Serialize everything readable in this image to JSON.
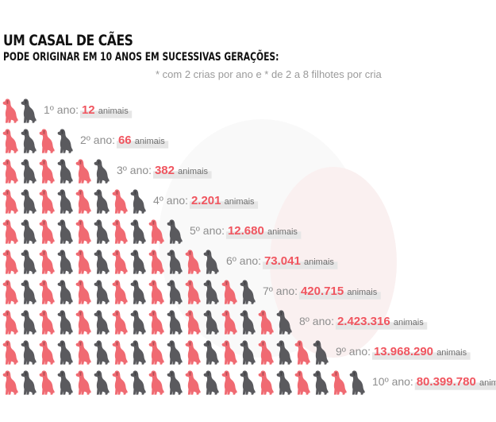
{
  "title": "UM CASAL DE CÃES",
  "subtitle": "PODE ORIGINAR EM 10 ANOS EM SUCESSIVAS GERAÇÕES:",
  "note": "* com 2 crias por ano e  * de 2 a 8 filhotes por cria",
  "colors": {
    "dog_pink": "#f06a72",
    "dog_gray": "#5a5a5e",
    "year_text": "#8e8e8e",
    "value_text": "#f0555f",
    "unit_text": "#6e6e6e",
    "label_shadow": "#e6e6e6"
  },
  "icons": [
    "dog-icon"
  ],
  "chart_data": {
    "type": "pictogram",
    "title": "UM CASAL DE CÃES",
    "subtitle": "PODE ORIGINAR EM 10 ANOS EM SUCESSIVAS GERAÇÕES:",
    "note": "* com 2 crias por ano e  * de 2 a 8 filhotes por cria",
    "unit": "animais",
    "categories": [
      "1º ano:",
      "2º ano:",
      "3º ano:",
      "4º ano:",
      "5º ano:",
      "6º ano:",
      "7º ano:",
      "8º ano:",
      "9º ano:",
      "10º ano:"
    ],
    "values": [
      12,
      66,
      382,
      2201,
      12680,
      73041,
      420715,
      2423316,
      13968290,
      80399780
    ],
    "value_labels": [
      "12",
      "66",
      "382",
      "2.201",
      "12.680",
      "73.041",
      "420.715",
      "2.423.316",
      "13.968.290",
      "80.399.780"
    ],
    "icons_per_row": [
      2,
      4,
      6,
      8,
      10,
      12,
      14,
      16,
      18,
      20
    ]
  }
}
